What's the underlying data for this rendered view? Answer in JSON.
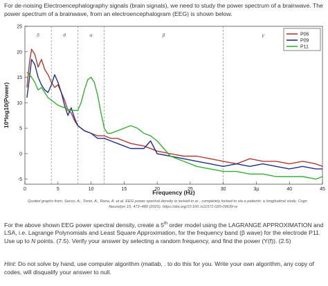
{
  "intro": {
    "line1": "For de-noising Electroencephalography signals (brain signals), we need to study the power spectrum of a brainwave.  The",
    "line2": "power spectrum of a brainwave, from an electroencephalogram (EEG) is shown below."
  },
  "chart_data": {
    "type": "line",
    "xlabel": "Frequency (Hz)",
    "ylabel": "10*log10(Power)",
    "xlim": [
      0,
      45
    ],
    "ylim": [
      -6,
      25
    ],
    "xticks": [
      "0",
      "5",
      "10",
      "15",
      "20",
      "25",
      "30",
      "3µ",
      "40",
      "45"
    ],
    "yticks": [
      "-5",
      "0",
      "5",
      "10",
      "15",
      "20",
      "25"
    ],
    "grid": false,
    "legend_position": "top-right",
    "bands": [
      {
        "label": "δ",
        "x": 2
      },
      {
        "label": "θ",
        "x": 6
      },
      {
        "label": "α",
        "x": 10
      },
      {
        "label": "β",
        "x": 21
      },
      {
        "label": "γ",
        "x": 36
      }
    ],
    "band_edges": [
      4,
      8,
      12,
      30
    ],
    "series": [
      {
        "name": "P06",
        "color": "#b03a2e",
        "x": [
          0.3,
          0.7,
          1.0,
          1.5,
          2.0,
          2.5,
          3.0,
          3.5,
          4.0,
          4.5,
          5.0,
          5.5,
          6.0,
          6.5,
          7.0,
          7.5,
          8.0,
          9.0,
          10.0,
          11.0,
          12.0,
          13.0,
          14.0,
          15.0,
          16.0,
          18.0,
          20.0,
          22.0,
          24.0,
          26.0,
          28.0,
          30.0,
          32.0,
          34.0,
          36.0,
          38.0,
          40.0,
          42.0,
          44.0,
          45.0
        ],
        "y": [
          13.0,
          18.0,
          20.5,
          19.5,
          17.0,
          18.5,
          16.5,
          15.5,
          14.0,
          13.0,
          13.5,
          12.0,
          10.5,
          8.5,
          8.0,
          6.5,
          5.5,
          4.5,
          4.0,
          3.5,
          3.5,
          3.0,
          3.0,
          2.5,
          2.0,
          1.5,
          0.5,
          0.0,
          -0.5,
          -0.5,
          -1.0,
          -1.5,
          -2.0,
          -1.0,
          -1.5,
          -1.5,
          -2.0,
          -1.5,
          -2.0,
          -2.5
        ]
      },
      {
        "name": "P09",
        "color": "#1c2f8c",
        "x": [
          0.3,
          0.7,
          1.0,
          1.5,
          2.0,
          2.5,
          3.0,
          3.5,
          4.0,
          4.5,
          5.0,
          5.5,
          6.0,
          6.5,
          7.0,
          7.5,
          8.0,
          9.0,
          10.0,
          11.0,
          12.0,
          13.0,
          14.0,
          15.0,
          16.0,
          18.0,
          19.0,
          20.0,
          22.0,
          24.0,
          26.0,
          28.0,
          30.0,
          32.0,
          34.0,
          36.0,
          38.0,
          40.0,
          42.0,
          44.0,
          45.0
        ],
        "y": [
          11.0,
          15.0,
          18.5,
          17.5,
          15.0,
          13.5,
          12.5,
          12.0,
          13.5,
          15.5,
          14.0,
          12.0,
          9.5,
          7.5,
          9.0,
          7.0,
          5.5,
          4.5,
          4.0,
          3.0,
          3.0,
          2.5,
          2.0,
          1.5,
          1.0,
          1.0,
          2.5,
          0.0,
          -0.5,
          -1.0,
          -1.5,
          -2.0,
          -2.5,
          -2.0,
          -2.5,
          -2.0,
          -2.5,
          -3.0,
          -2.5,
          -3.0,
          -3.0
        ]
      },
      {
        "name": "P11",
        "color": "#33b02e",
        "x": [
          0.3,
          0.7,
          1.0,
          1.5,
          2.0,
          2.5,
          3.0,
          3.5,
          4.0,
          5.0,
          6.0,
          7.0,
          8.0,
          8.5,
          9.0,
          9.5,
          10.0,
          10.5,
          11.0,
          11.5,
          12.0,
          12.5,
          13.0,
          14.0,
          15.0,
          16.0,
          17.0,
          18.0,
          19.0,
          20.0,
          21.0,
          22.0,
          24.0,
          26.0,
          28.0,
          30.0,
          32.0,
          34.0,
          36.0,
          38.0,
          40.0,
          42.0,
          44.0,
          45.0
        ],
        "y": [
          16.0,
          15.5,
          15.0,
          14.0,
          12.5,
          13.0,
          12.0,
          11.0,
          10.5,
          9.5,
          9.0,
          8.5,
          8.5,
          10.0,
          12.5,
          14.5,
          15.0,
          14.0,
          11.5,
          8.0,
          5.0,
          4.0,
          4.0,
          4.5,
          5.0,
          5.5,
          5.0,
          4.0,
          3.5,
          2.5,
          1.0,
          -0.5,
          -1.5,
          -2.5,
          -3.0,
          -3.5,
          -3.5,
          -4.0,
          -4.0,
          -4.5,
          -4.5,
          -4.5,
          -5.0,
          -4.5
        ]
      }
    ]
  },
  "caption": {
    "line1": "Quoted graphs from, Secco, A., Tonin, A., Rana, A. et al. EEG power spectral density in locked-in ar , completely locked-in sta e patients: a longitudinal study. Cogn",
    "line2": "Neurodyn 15, 473–480 (2021). https://doi.org/10.100 /s11571-020-09639-w"
  },
  "question": {
    "part1": "For the above shown EEG power spectral density, create a 5",
    "superscript": "th",
    "part2": " order model using the LAGRANGE APPROXIMATION and LSA, i.e. Lagrange Polynomials and Least Square Approximation,  for the frequency band (β wave) for the electrode P11.  Use up to ",
    "n": "N",
    "part3": " points.  (7.5).  Verify your answer by selecting a random frequency, and find the power (Y(f)).  (2.5)"
  },
  "hint": {
    "lead": "Hint:",
    "text": " Do not solve by hand, use computer algorithm (matlab,  .                              to do this for you. Write your own algorithm, any copy of codes, will disqualify your answer to null."
  }
}
